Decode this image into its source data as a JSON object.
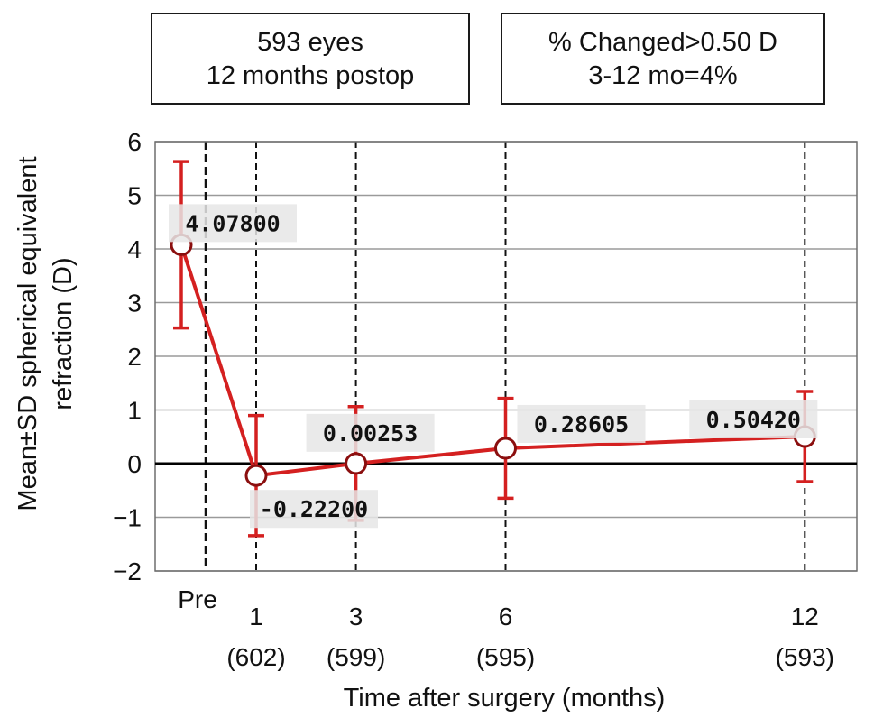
{
  "info_boxes": {
    "left": {
      "line1": "593 eyes",
      "line2": "12 months postop"
    },
    "right": {
      "line1": "% Changed>0.50 D",
      "line2": "3-12 mo=4%"
    }
  },
  "colors": {
    "series": "#d42020",
    "marker_fill": "#ffffff",
    "grid": "#9a9a9a",
    "label_bg": "#e6e6e6",
    "zero_line": "#000000"
  },
  "chart_data": {
    "type": "line",
    "xlabel": "Time after surgery (months)",
    "ylabel_lines": [
      "Mean±SD spherical equivalent",
      "refraction (D)"
    ],
    "ylim": [
      -2,
      6
    ],
    "y_ticks": [
      "6",
      "5",
      "4",
      "3",
      "2",
      "1",
      "0",
      "−1",
      "−2"
    ],
    "grid": true,
    "categories": [
      {
        "label": "Pre",
        "n": ""
      },
      {
        "label": "1",
        "n": "(602)"
      },
      {
        "label": "3",
        "n": "(599)"
      },
      {
        "label": "6",
        "n": "(595)"
      },
      {
        "label": "12",
        "n": "(593)"
      }
    ],
    "x": [
      -0.5,
      1,
      3,
      6,
      12
    ],
    "series": [
      {
        "values": [
          4.078,
          -0.222,
          0.00253,
          0.28605,
          0.5042
        ],
        "sd": [
          1.55,
          1.12,
          1.06,
          0.93,
          0.84
        ],
        "data_labels": [
          "4.07800",
          "-0.22200",
          "0.00253",
          "0.28605",
          "0.50420"
        ]
      }
    ]
  }
}
